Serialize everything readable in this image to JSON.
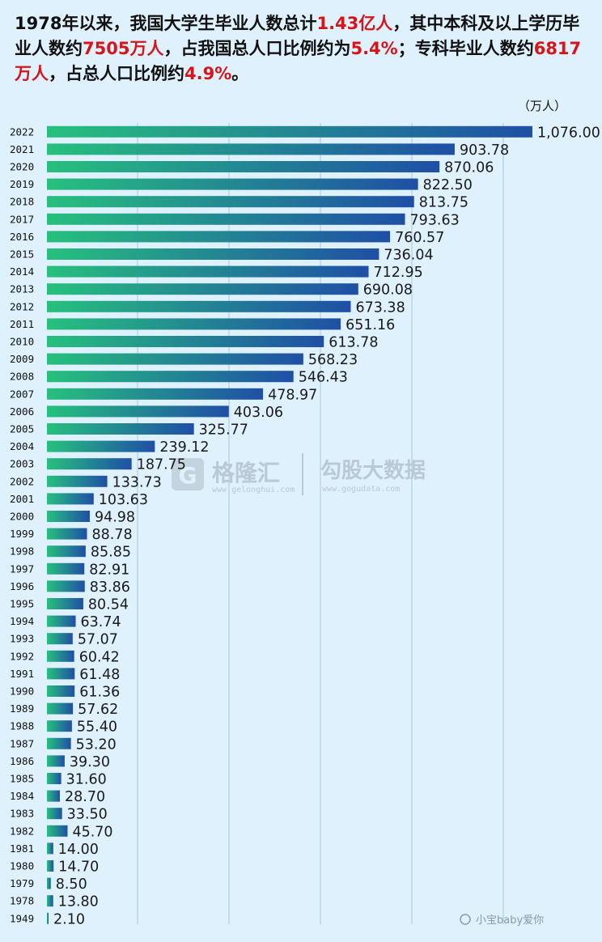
{
  "headline": {
    "part1": "1978年以来，我国大学生毕业人数总计",
    "total": "1.43亿人",
    "part2": "，其中本科及以上学历毕业人数约",
    "bachelor": "7505万人",
    "part3": "，占我国总人口比例约为",
    "bachelor_ratio": "5.4%",
    "part4": "；专科毕业人数约",
    "junior": "6817万人",
    "part5": "，占总人口比例约",
    "junior_ratio": "4.9%",
    "part6": "。"
  },
  "unit_label": "（万人）",
  "watermarks": {
    "left_main": "格隆汇",
    "left_sub": "www.gelonghui.com",
    "right_main": "勾股大数据",
    "right_sub": "www.gogudata.com"
  },
  "credit": "小宝baby爱你",
  "colors": {
    "background": "#dff1fc",
    "bar_start": "#27c07e",
    "bar_end": "#1f4fa6",
    "highlight": "#d8141b",
    "gridline": "#a9c9de"
  },
  "chart_data": {
    "type": "bar",
    "orientation": "horizontal",
    "grid": true,
    "categories": [
      "2022",
      "2021",
      "2020",
      "2019",
      "2018",
      "2017",
      "2016",
      "2015",
      "2014",
      "2013",
      "2012",
      "2011",
      "2010",
      "2009",
      "2008",
      "2007",
      "2006",
      "2005",
      "2004",
      "2003",
      "2002",
      "2001",
      "2000",
      "1999",
      "1998",
      "1997",
      "1996",
      "1995",
      "1994",
      "1993",
      "1992",
      "1991",
      "1990",
      "1989",
      "1988",
      "1987",
      "1986",
      "1985",
      "1984",
      "1983",
      "1982",
      "1981",
      "1980",
      "1979",
      "1978",
      "1949"
    ],
    "values": [
      1076.0,
      903.78,
      870.06,
      822.5,
      813.75,
      793.63,
      760.57,
      736.04,
      712.95,
      690.08,
      673.38,
      651.16,
      613.78,
      568.23,
      546.43,
      478.97,
      403.06,
      325.77,
      239.12,
      187.75,
      133.73,
      103.63,
      94.98,
      88.78,
      85.85,
      82.91,
      83.86,
      80.54,
      63.74,
      57.07,
      60.42,
      61.48,
      61.36,
      57.62,
      55.4,
      53.2,
      39.3,
      31.6,
      28.7,
      33.5,
      45.7,
      14.0,
      14.7,
      8.5,
      13.8,
      2.1
    ],
    "labels": [
      "1,076.00",
      "903.78",
      "870.06",
      "822.50",
      "813.75",
      "793.63",
      "760.57",
      "736.04",
      "712.95",
      "690.08",
      "673.38",
      "651.16",
      "613.78",
      "568.23",
      "546.43",
      "478.97",
      "403.06",
      "325.77",
      "239.12",
      "187.75",
      "133.73",
      "103.63",
      "94.98",
      "88.78",
      "85.85",
      "82.91",
      "83.86",
      "80.54",
      "63.74",
      "57.07",
      "60.42",
      "61.48",
      "61.36",
      "57.62",
      "55.40",
      "53.20",
      "39.30",
      "31.60",
      "28.70",
      "33.50",
      "45.70",
      "14.00",
      "14.70",
      "8.50",
      "13.80",
      "2.10"
    ]
  }
}
